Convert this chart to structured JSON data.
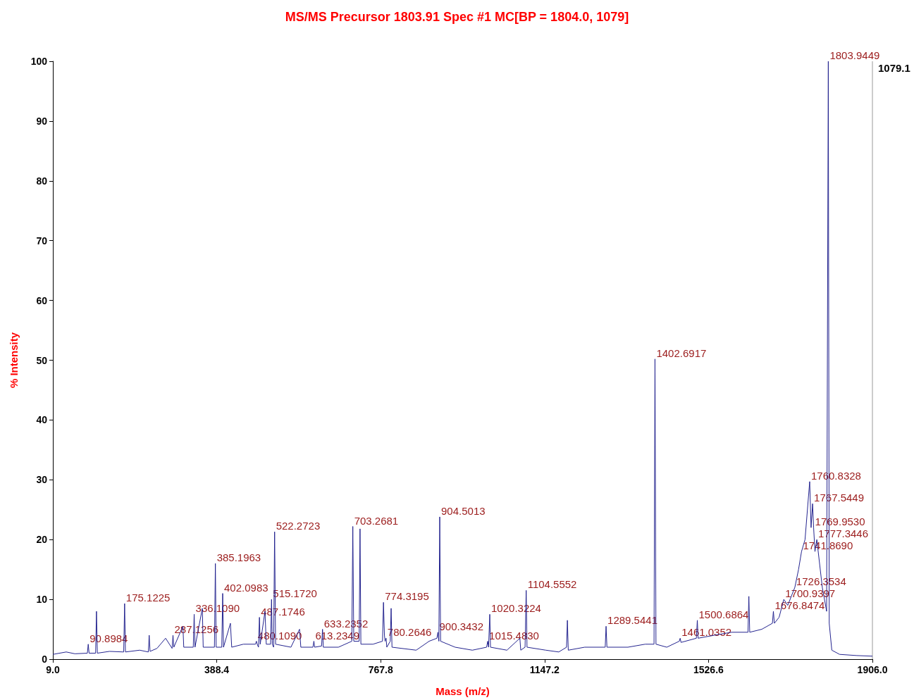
{
  "chart_data": {
    "type": "line",
    "title": "MS/MS Precursor 1803.91 Spec #1 MC[BP = 1804.0, 1079]",
    "xlabel": "Mass (m/z)",
    "ylabel": "% Intensity",
    "x": [
      9,
      40,
      60,
      88.9,
      90.9,
      92.9,
      108,
      110,
      112,
      140,
      173,
      175.1,
      177,
      210,
      230,
      232,
      234,
      250,
      270,
      285,
      287.1,
      289,
      310,
      312,
      334,
      336.1,
      338,
      355,
      357,
      383,
      385.2,
      387,
      400,
      402.1,
      404,
      420,
      423,
      450,
      478,
      480.1,
      482,
      485,
      487.2,
      489,
      500,
      503,
      513,
      515.2,
      517,
      520,
      522.3,
      524.5,
      560,
      580,
      583,
      611,
      613.2,
      615,
      631,
      633.2,
      635,
      670,
      701,
      703.3,
      705.5,
      718,
      720,
      722,
      750,
      772,
      774.3,
      776.5,
      778,
      780.3,
      782,
      790,
      792,
      794,
      850,
      880,
      898,
      900.3,
      902.5,
      904.5,
      906.5,
      940,
      980,
      1013,
      1015.5,
      1017.5,
      1018,
      1020.3,
      1022,
      1060,
      1090,
      1092,
      1102,
      1104.6,
      1106.5,
      1150,
      1180,
      1198,
      1200,
      1202,
      1240,
      1287.5,
      1289.5,
      1291.5,
      1340,
      1380,
      1400.5,
      1402.7,
      1405,
      1430,
      1459,
      1461,
      1463,
      1498.5,
      1500.7,
      1502.5,
      1540,
      1580,
      1618,
      1620,
      1622,
      1650,
      1674.5,
      1676.8,
      1679,
      1690,
      1700.9,
      1710,
      1726.4,
      1735,
      1741.9,
      1750,
      1760.8,
      1764,
      1767.5,
      1769.9,
      1773,
      1777.3,
      1790,
      1800,
      1803.9,
      1806,
      1812,
      1830,
      1870,
      1906
    ],
    "series": [
      {
        "color": "#24248f",
        "values": [
          0.8,
          1.2,
          0.9,
          1,
          2.5,
          1,
          1,
          8,
          1,
          1.3,
          1.2,
          9.3,
          1.2,
          1.5,
          1.2,
          4,
          1.3,
          1.8,
          3.5,
          1.8,
          4,
          2,
          5.5,
          2,
          2,
          7.5,
          2,
          8.5,
          2,
          2,
          16,
          2,
          2,
          11,
          2,
          6,
          2,
          2.5,
          2.5,
          3,
          2.5,
          2,
          7,
          2.5,
          8,
          2.5,
          2.5,
          10,
          2.5,
          2,
          21.3,
          2.5,
          2,
          5,
          2,
          2,
          3,
          2,
          2.2,
          5,
          2,
          2,
          3,
          22.2,
          3,
          3,
          21.8,
          2.5,
          2.5,
          3,
          9.5,
          4,
          3,
          3.5,
          2,
          3,
          8.5,
          2,
          1.5,
          3,
          3.5,
          4.5,
          3,
          23.8,
          3,
          2,
          1.5,
          2,
          3,
          2,
          2,
          7.5,
          2,
          1.5,
          3.5,
          1.5,
          2,
          11.5,
          2,
          1.5,
          1.2,
          2,
          6.5,
          1.5,
          2,
          2,
          5.5,
          2,
          2,
          2.5,
          2.5,
          50.2,
          2.5,
          2,
          3,
          3.5,
          2.8,
          3.5,
          6.5,
          3.5,
          4,
          4.5,
          4.5,
          10.5,
          4.5,
          5,
          6,
          8,
          6,
          7,
          10,
          9,
          12,
          15,
          18,
          20,
          29.7,
          22,
          26,
          22,
          18,
          20,
          12,
          8,
          100,
          6,
          1.5,
          0.8,
          0.6,
          0.5
        ]
      }
    ],
    "xlim": [
      9,
      1906
    ],
    "xticks": [
      {
        "value": 9,
        "label": "9.0"
      },
      388.4,
      767.8,
      1147.2,
      1526.6,
      {
        "value": 1906,
        "label": "1906.0"
      }
    ],
    "ylim": [
      0,
      100
    ],
    "yticks": [
      0,
      10,
      20,
      30,
      40,
      50,
      60,
      70,
      80,
      90,
      100
    ],
    "grid": false,
    "marker": "none",
    "line_style": "solid",
    "annotations": [
      {
        "text": "90.8984",
        "x": 90.8984,
        "y": 2.5
      },
      {
        "text": "175.1225",
        "x": 175.1225,
        "y": 9.3
      },
      {
        "text": "287.1256",
        "x": 287.1256,
        "y": 4
      },
      {
        "text": "336.1090",
        "x": 336.109,
        "y": 7.5
      },
      {
        "text": "385.1963",
        "x": 385.1963,
        "y": 16
      },
      {
        "text": "402.0983",
        "x": 402.0983,
        "y": 11
      },
      {
        "text": "480.1090",
        "x": 480.109,
        "y": 3
      },
      {
        "text": "487.1746",
        "x": 487.1746,
        "y": 7
      },
      {
        "text": "515.1720",
        "x": 515.172,
        "y": 10
      },
      {
        "text": "522.2723",
        "x": 522.2723,
        "y": 21.3
      },
      {
        "text": "613.2349",
        "x": 613.2349,
        "y": 3
      },
      {
        "text": "633.2352",
        "x": 633.2352,
        "y": 5
      },
      {
        "text": "703.2681",
        "x": 703.2681,
        "y": 22.2
      },
      {
        "text": "774.3195",
        "x": 774.3195,
        "y": 9.5
      },
      {
        "text": "780.2646",
        "x": 780.2646,
        "y": 3.5
      },
      {
        "text": "900.3432",
        "x": 900.3432,
        "y": 4.5
      },
      {
        "text": "904.5013",
        "x": 904.5013,
        "y": 23.8
      },
      {
        "text": "1015.4830",
        "x": 1015.483,
        "y": 3
      },
      {
        "text": "1020.3224",
        "x": 1020.3224,
        "y": 7.5
      },
      {
        "text": "1104.5552",
        "x": 1104.5552,
        "y": 11.5
      },
      {
        "text": "1289.5441",
        "x": 1289.5441,
        "y": 5.5
      },
      {
        "text": "1402.6917",
        "x": 1402.6917,
        "y": 50.2
      },
      {
        "text": "1461.0352",
        "x": 1461.0352,
        "y": 3.5
      },
      {
        "text": "1500.6864",
        "x": 1500.6864,
        "y": 6.5
      },
      {
        "text": "1676.8474",
        "x": 1676.8474,
        "y": 8
      },
      {
        "text": "1700.9397",
        "x": 1700.9397,
        "y": 10
      },
      {
        "text": "1726.3534",
        "x": 1726.3534,
        "y": 12
      },
      {
        "text": "1741.8690",
        "x": 1741.869,
        "y": 18
      },
      {
        "text": "1760.8328",
        "x": 1760.8328,
        "y": 29.7
      },
      {
        "text": "1767.5449",
        "x": 1767.5449,
        "y": 26
      },
      {
        "text": "1769.9530",
        "x": 1769.953,
        "y": 22
      },
      {
        "text": "1777.3446",
        "x": 1777.3446,
        "y": 20
      },
      {
        "text": "1803.9449",
        "x": 1803.9449,
        "y": 100
      },
      "1079.1"
    ]
  }
}
